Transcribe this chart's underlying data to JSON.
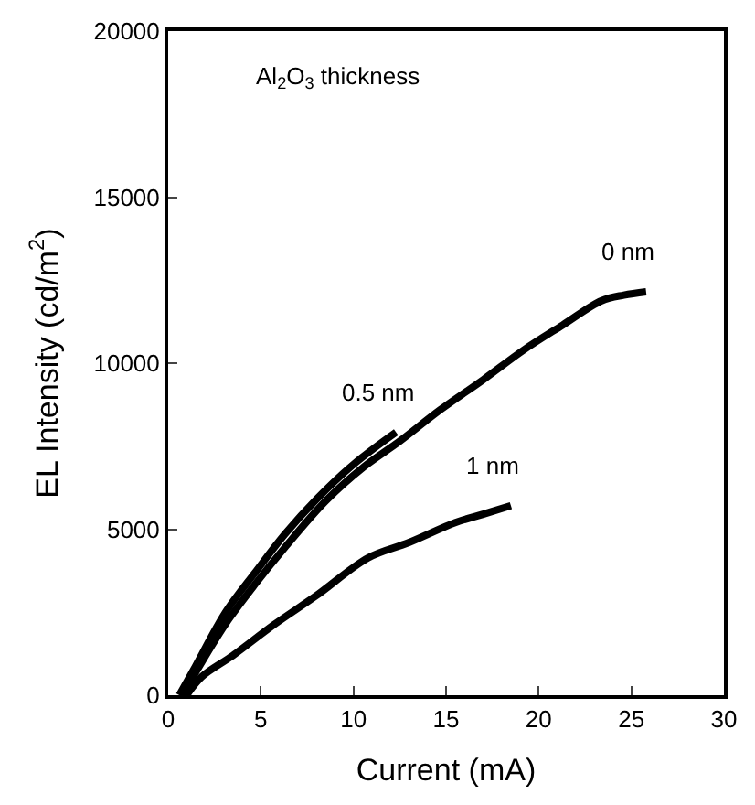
{
  "chart_data": {
    "type": "line",
    "xlabel": "Current (mA)",
    "ylabel": "EL Intensity (cd/m$^{2}$)",
    "xlim": [
      0,
      30
    ],
    "xticks": [
      0,
      5,
      10,
      15,
      20,
      25,
      30
    ],
    "ylim": [
      0,
      20000
    ],
    "yticks": [
      0,
      5000,
      10000,
      15000,
      20000
    ],
    "legend": false,
    "line_style": "solid",
    "marker": "none",
    "annotations": [
      "Al$_{2}$O$_{3}$ thickness"
    ],
    "series": [
      {
        "name": "0 nm",
        "color": "#000000",
        "x": [
          0.8,
          1.5,
          3.1,
          4.7,
          6.3,
          8.5,
          10.5,
          12.5,
          14.7,
          17,
          19.2,
          21.3,
          23.4,
          24.6,
          25.8
        ],
        "values": [
          0,
          700,
          2150,
          3350,
          4450,
          5850,
          6850,
          7650,
          8600,
          9500,
          10400,
          11150,
          11880,
          12050,
          12150
        ]
      },
      {
        "name": "0.5 nm",
        "color": "#000000",
        "x": [
          0.6,
          1.5,
          3.1,
          4.7,
          6.3,
          8,
          10,
          12.3
        ],
        "values": [
          0,
          900,
          2500,
          3700,
          4850,
          5900,
          6950,
          7920
        ]
      },
      {
        "name": "1 nm",
        "color": "#000000",
        "x": [
          1,
          1.8,
          3.5,
          5.7,
          8,
          10.8,
          13,
          15.5,
          17,
          18.5
        ],
        "values": [
          0,
          550,
          1200,
          2120,
          3000,
          4140,
          4600,
          5200,
          5450,
          5710
        ]
      }
    ]
  }
}
